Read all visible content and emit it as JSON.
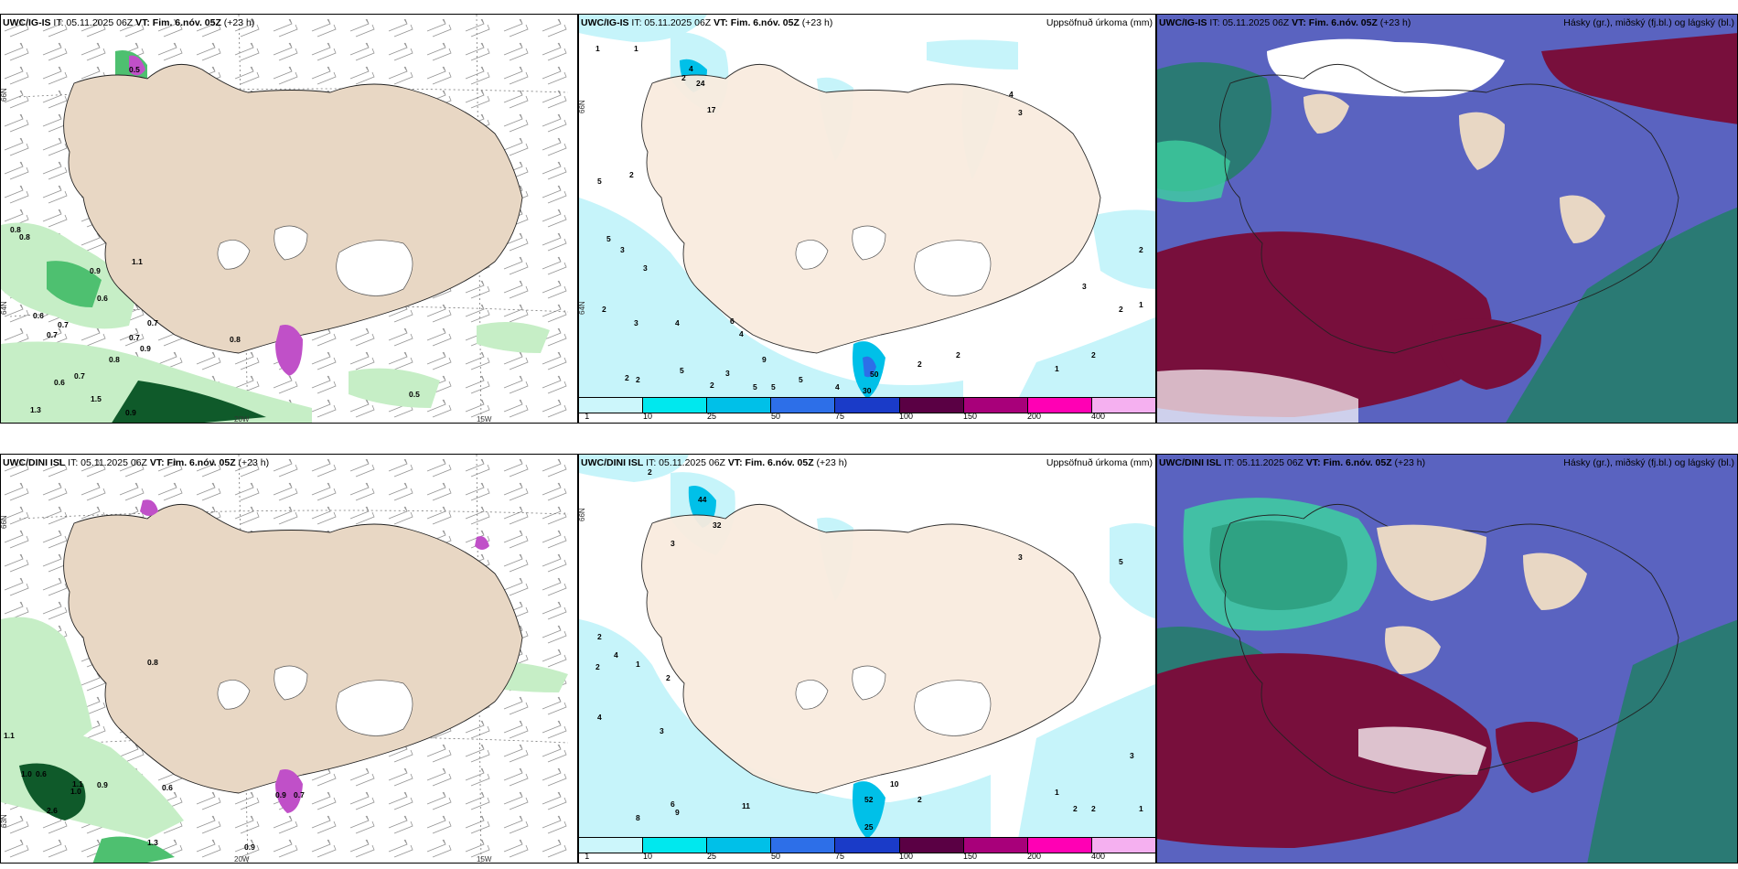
{
  "panels": {
    "p1": {
      "title_bold": "UWC/IG-IS",
      "title_rest": " IT: 05.11.2025 06Z ",
      "vt_bold": "VT: Fim. 6.nóv. 05Z",
      "vt_rest": " (+23 h)"
    },
    "p2": {
      "title_bold": "UWC/IG-IS",
      "title_rest": " IT: 05.11.2025 06Z ",
      "vt_bold": "VT: Fim. 6.nóv. 05Z",
      "vt_rest": " (+23 h)",
      "right_title": "Uppsöfnuð úrkoma (mm)"
    },
    "p3": {
      "title_bold": "UWC/IG-IS",
      "title_rest": " IT: 05.11.2025 06Z ",
      "vt_bold": "VT: Fim. 6.nóv. 05Z",
      "vt_rest": " (+23 h)",
      "right_title": "Hásky (gr.), miðský (fj.bl.) og lágský (bl.)"
    },
    "p4": {
      "title_bold": "UWC/DINI ISL",
      "title_rest": " IT: 05.11.2025 06Z ",
      "vt_bold": "VT: Fim. 6.nóv. 05Z",
      "vt_rest": " (+23 h)"
    },
    "p5": {
      "title_bold": "UWC/DINI ISL",
      "title_rest": " IT: 05.11.2025 06Z ",
      "vt_bold": "VT: Fim. 6.nóv. 05Z",
      "vt_rest": " (+23 h)",
      "right_title": "Uppsöfnuð úrkoma (mm)"
    },
    "p6": {
      "title_bold": "UWC/DINI ISL",
      "title_rest": " IT: 05.11.2025 06Z ",
      "vt_bold": "VT: Fim. 6.nóv. 05Z",
      "vt_rest": " (+23 h)",
      "right_title": "Hásky (gr.), miðský (fj.bl.) og lágský (bl.)"
    }
  },
  "axis_labels": {
    "lon_20": "20W",
    "lon_15": "15W",
    "lat_66": "66N",
    "lat_64": "64N",
    "lat_63": "63N"
  },
  "legend": {
    "ticks": [
      "1",
      "10",
      "25",
      "50",
      "75",
      "100",
      "150",
      "200",
      "400"
    ],
    "colors": [
      "#ccf6fb",
      "#00e8ee",
      "#00c0e8",
      "#2d6fe8",
      "#1a3bc8",
      "#5a0044",
      "#a8007a",
      "#ff00b4",
      "#f5b0f0"
    ]
  },
  "colors": {
    "land": "#e8d7c4",
    "land_precip": "#f9ecdf",
    "glacier": "#ffffff",
    "sea": "#ffffff",
    "precip_light": "#c6eec6",
    "precip_mid": "#4ec070",
    "precip_dark": "#0f5a2a",
    "snow": "#c050c8",
    "cloud_high": "#780f3c",
    "cloud_mid": "#5060c0",
    "cloud_low": "#2a7a74"
  },
  "precip_values_p1": [
    "0.5",
    "0.8",
    "0.8",
    "0.9",
    "0.6",
    "1.1",
    "0.6",
    "0.7",
    "0.7",
    "0.7",
    "0.8",
    "0.7",
    "0.9",
    "0.8",
    "0.7",
    "0.6",
    "1.5",
    "1.3",
    "0.9",
    "0.5"
  ],
  "precip_values_p2": [
    "1",
    "1",
    "2",
    "4",
    "24",
    "17",
    "5",
    "2",
    "5",
    "3",
    "3",
    "2",
    "4",
    "3",
    "2",
    "5",
    "2",
    "2",
    "3",
    "9",
    "5",
    "4",
    "6",
    "4",
    "5",
    "5",
    "30",
    "50",
    "2",
    "2",
    "3",
    "2",
    "1",
    "2",
    "1",
    "2",
    "4",
    "3"
  ],
  "precip_values_p4": [
    "1.1",
    "1.0",
    "0.6",
    "1.0",
    "0.9",
    "1.1",
    "2.6",
    "0.7",
    "0.9",
    "0.8",
    "0.6",
    "1.3",
    "0.9"
  ],
  "precip_values_p5": [
    "2",
    "44",
    "32",
    "3",
    "2",
    "4",
    "2",
    "1",
    "4",
    "2",
    "3",
    "6",
    "11",
    "8",
    "9",
    "52",
    "25",
    "10",
    "2",
    "5",
    "3",
    "2",
    "1",
    "2",
    "3",
    "1"
  ]
}
